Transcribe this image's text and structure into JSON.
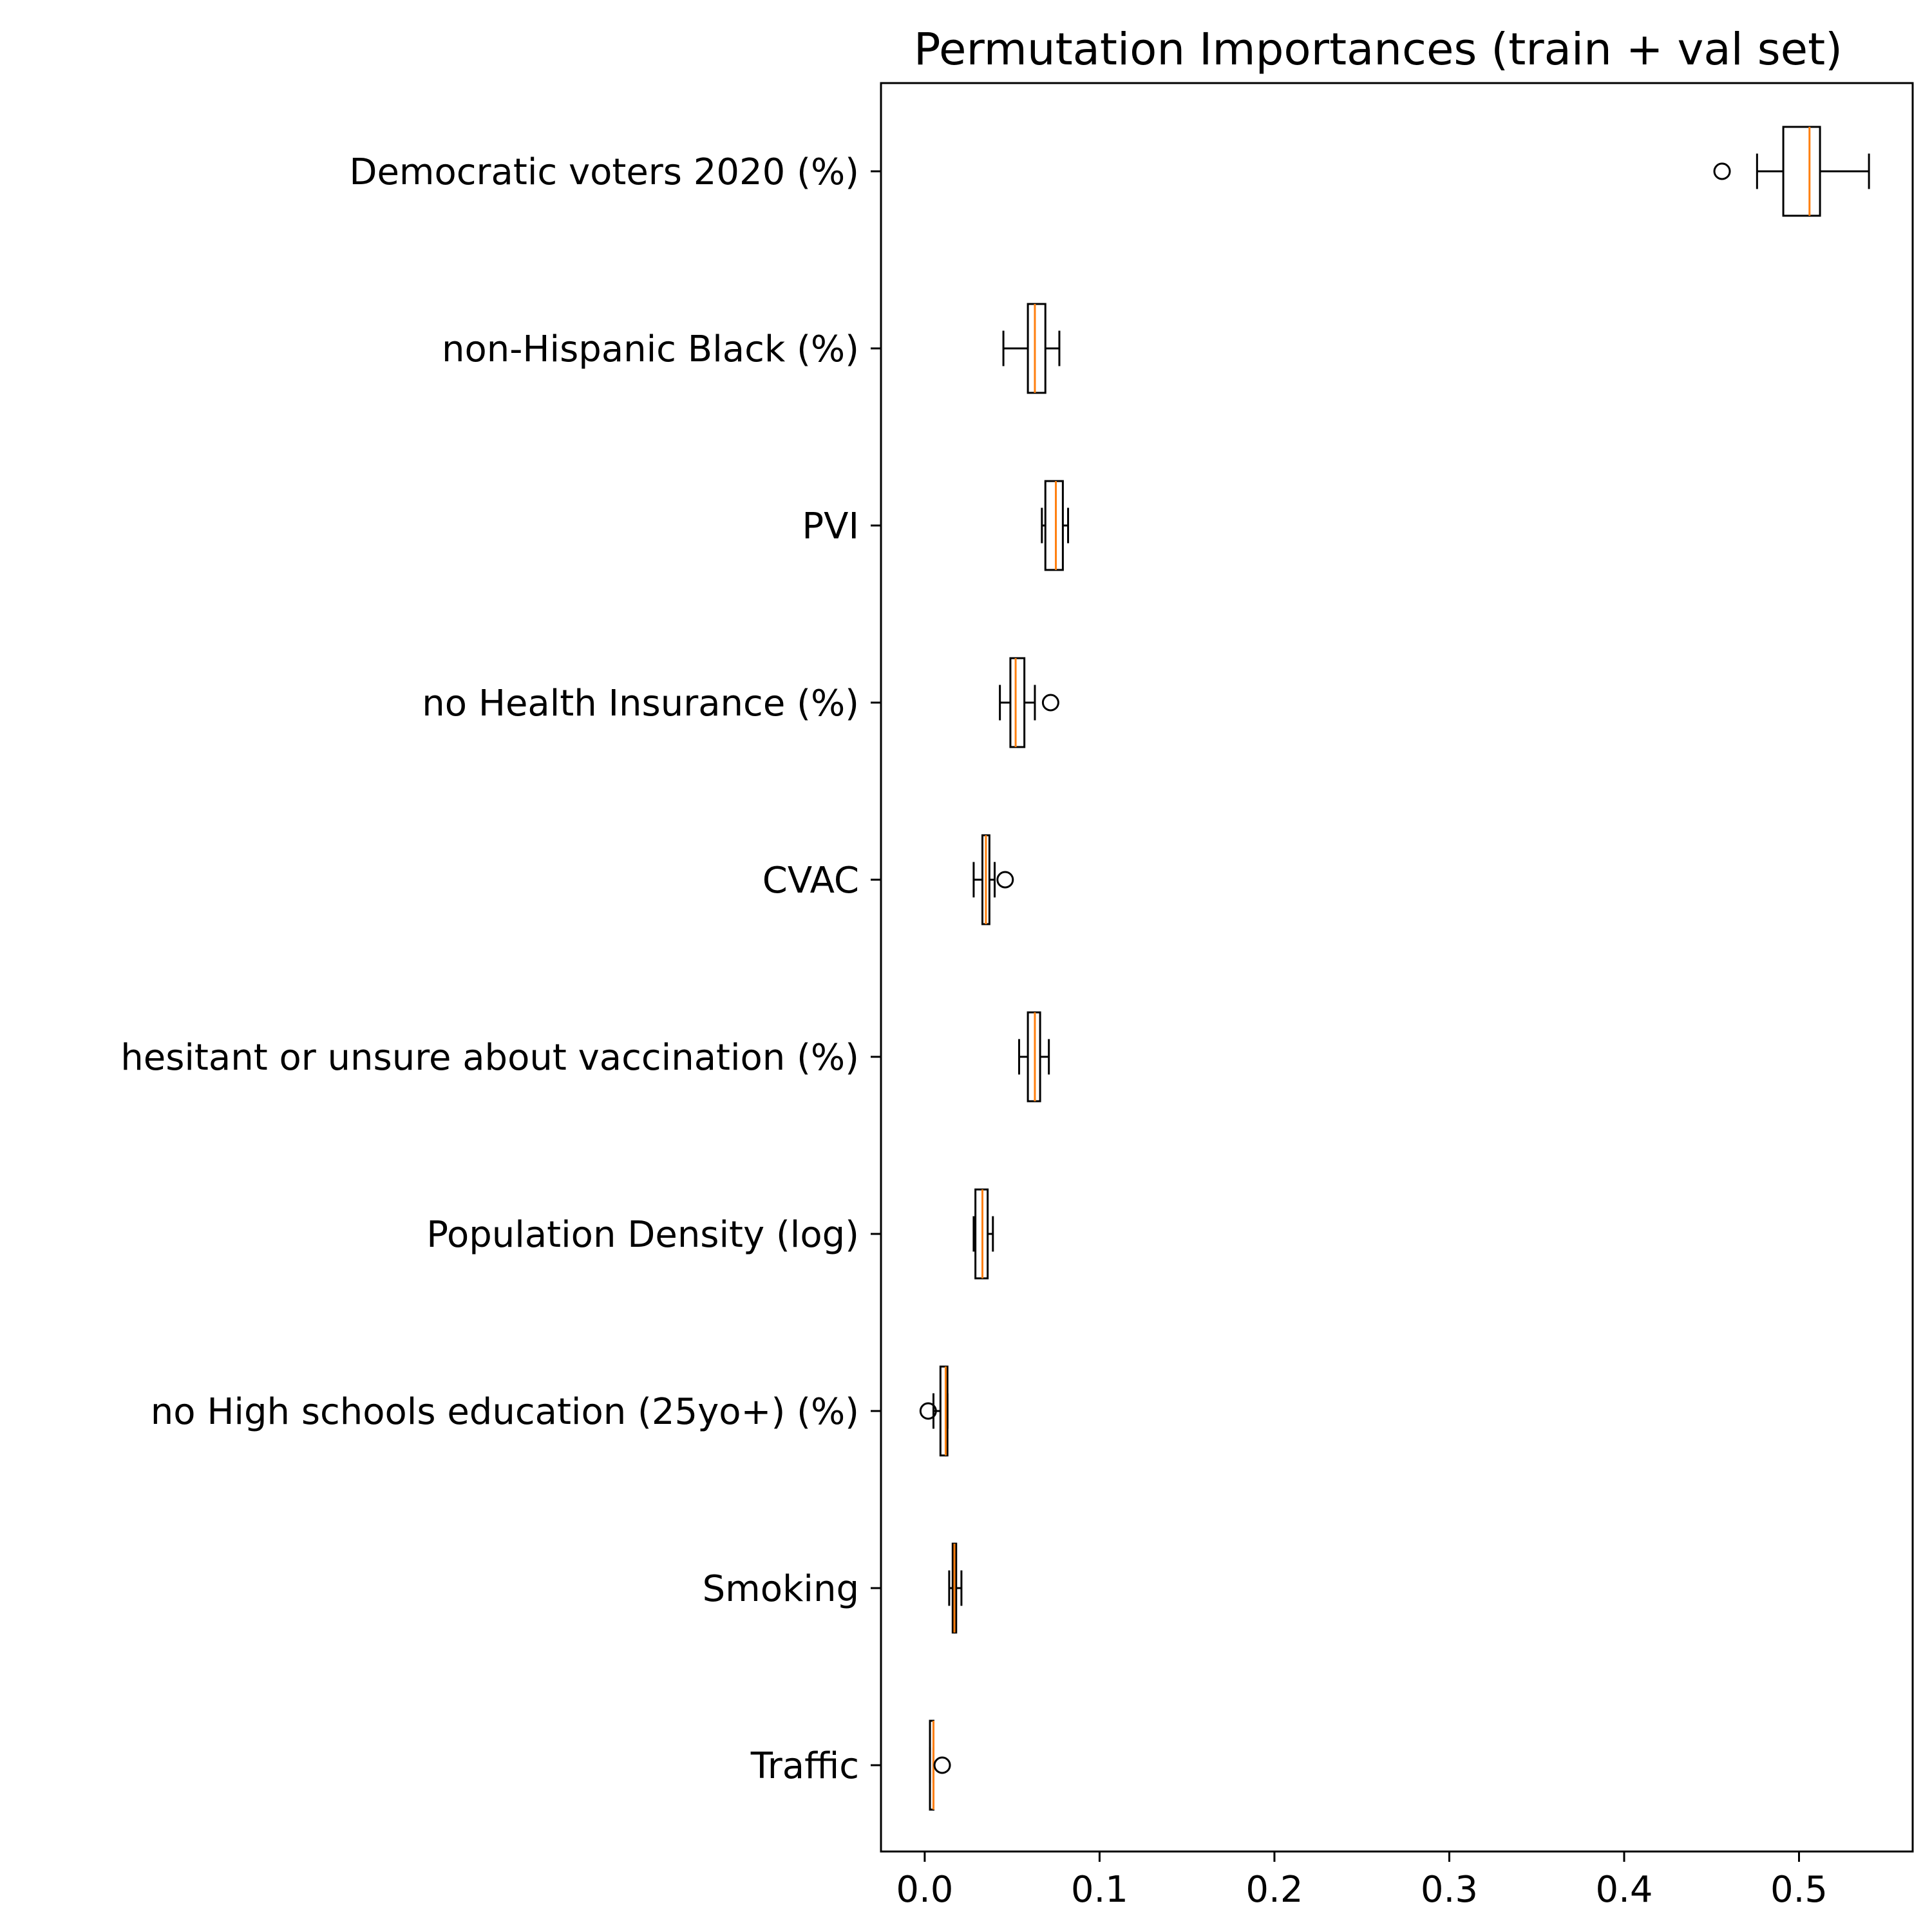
{
  "chart_data": {
    "type": "boxplot",
    "orientation": "horizontal",
    "title": "Permutation Importances (train + val set)",
    "xlabel": "",
    "ylabel": "",
    "xlim": [
      -0.025,
      0.565
    ],
    "xticks": [
      0.0,
      0.1,
      0.2,
      0.3,
      0.4,
      0.5
    ],
    "xtick_labels": [
      "0.0",
      "0.1",
      "0.2",
      "0.3",
      "0.4",
      "0.5"
    ],
    "grid": false,
    "categories": [
      "Democratic voters 2020 (%)",
      "non-Hispanic Black (%)",
      "PVI",
      "no Health Insurance (%)",
      "CVAC",
      "hesitant or unsure about vaccination (%)",
      "Population Density (log)",
      "no High schools education (25yo+) (%)",
      "Smoking",
      "Traffic"
    ],
    "boxes": [
      {
        "whisker_low": 0.476,
        "q1": 0.491,
        "median": 0.506,
        "q3": 0.512,
        "whisker_high": 0.54,
        "outliers": [
          0.456
        ]
      },
      {
        "whisker_low": 0.045,
        "q1": 0.059,
        "median": 0.063,
        "q3": 0.069,
        "whisker_high": 0.077,
        "outliers": []
      },
      {
        "whisker_low": 0.067,
        "q1": 0.069,
        "median": 0.075,
        "q3": 0.079,
        "whisker_high": 0.082,
        "outliers": []
      },
      {
        "whisker_low": 0.043,
        "q1": 0.049,
        "median": 0.052,
        "q3": 0.057,
        "whisker_high": 0.063,
        "outliers": [
          0.072
        ]
      },
      {
        "whisker_low": 0.028,
        "q1": 0.033,
        "median": 0.035,
        "q3": 0.037,
        "whisker_high": 0.04,
        "outliers": [
          0.046
        ]
      },
      {
        "whisker_low": 0.054,
        "q1": 0.059,
        "median": 0.063,
        "q3": 0.066,
        "whisker_high": 0.071,
        "outliers": []
      },
      {
        "whisker_low": 0.028,
        "q1": 0.029,
        "median": 0.033,
        "q3": 0.036,
        "whisker_high": 0.039,
        "outliers": []
      },
      {
        "whisker_low": 0.005,
        "q1": 0.009,
        "median": 0.012,
        "q3": 0.013,
        "whisker_high": 0.013,
        "outliers": [
          0.002
        ]
      },
      {
        "whisker_low": 0.014,
        "q1": 0.016,
        "median": 0.017,
        "q3": 0.018,
        "whisker_high": 0.021,
        "outliers": []
      },
      {
        "whisker_low": 0.003,
        "q1": 0.003,
        "median": 0.005,
        "q3": 0.005,
        "whisker_high": 0.005,
        "outliers": [
          0.01
        ]
      }
    ],
    "colors": {
      "box": "#000000",
      "median": "#ff7f0e",
      "axis": "#000000",
      "background": "#ffffff"
    }
  }
}
